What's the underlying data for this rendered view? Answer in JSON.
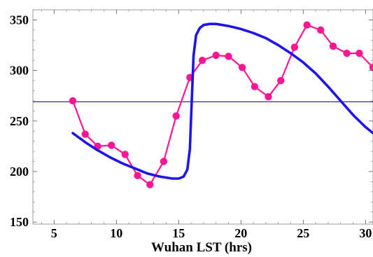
{
  "chart_data": {
    "type": "line",
    "title": "",
    "xlabel": "Wuhan LST (hrs)",
    "ylabel": "",
    "xlim": [
      3.3,
      30.6
    ],
    "ylim": [
      148,
      360
    ],
    "x_ticks": [
      5,
      10,
      15,
      20,
      25,
      30
    ],
    "x_tick_labels": [
      "5",
      "10",
      "15",
      "20",
      "25",
      "30"
    ],
    "y_ticks": [
      150,
      200,
      250,
      300,
      350
    ],
    "y_tick_labels": [
      "150",
      "200",
      "250",
      "300",
      "350"
    ],
    "grid": false,
    "legend": "none",
    "reference_line": {
      "y": 269,
      "color": "#2a2a9a"
    },
    "series": [
      {
        "style": "markers+line",
        "color": "#ff1493",
        "points": [
          [
            6.5,
            270
          ],
          [
            7.5,
            237
          ],
          [
            8.5,
            225
          ],
          [
            9.6,
            226
          ],
          [
            10.7,
            217
          ],
          [
            11.7,
            196
          ],
          [
            12.7,
            187
          ],
          [
            13.8,
            210
          ],
          [
            14.8,
            255
          ],
          [
            15.9,
            293
          ],
          [
            16.9,
            310
          ],
          [
            18.0,
            315
          ],
          [
            19.0,
            314
          ],
          [
            20.1,
            303
          ],
          [
            21.1,
            284
          ],
          [
            22.2,
            274
          ],
          [
            23.2,
            290
          ],
          [
            24.3,
            323
          ],
          [
            25.3,
            345
          ],
          [
            26.4,
            340
          ],
          [
            27.4,
            324
          ],
          [
            28.5,
            317
          ],
          [
            29.5,
            317
          ],
          [
            30.6,
            303
          ]
        ]
      },
      {
        "style": "line",
        "color": "#1e14f0",
        "points": [
          [
            6.5,
            238
          ],
          [
            7.5,
            229
          ],
          [
            8.5,
            221
          ],
          [
            9.5,
            214
          ],
          [
            10.5,
            208
          ],
          [
            11.5,
            203
          ],
          [
            12.5,
            198
          ],
          [
            13.5,
            195
          ],
          [
            14.5,
            193
          ],
          [
            15.0,
            193
          ],
          [
            15.4,
            195
          ],
          [
            15.7,
            202
          ],
          [
            15.9,
            222
          ],
          [
            16.05,
            270
          ],
          [
            16.2,
            315
          ],
          [
            16.4,
            335
          ],
          [
            16.7,
            342
          ],
          [
            17.0,
            345
          ],
          [
            17.5,
            346
          ],
          [
            18.0,
            346
          ],
          [
            19.0,
            344
          ],
          [
            20.0,
            341
          ],
          [
            21.0,
            337
          ],
          [
            22.0,
            332
          ],
          [
            23.0,
            325
          ],
          [
            24.0,
            317
          ],
          [
            25.0,
            308
          ],
          [
            26.0,
            297
          ],
          [
            27.0,
            284
          ],
          [
            28.0,
            270
          ],
          [
            29.0,
            256
          ],
          [
            30.0,
            244
          ],
          [
            30.6,
            238
          ]
        ]
      }
    ]
  }
}
